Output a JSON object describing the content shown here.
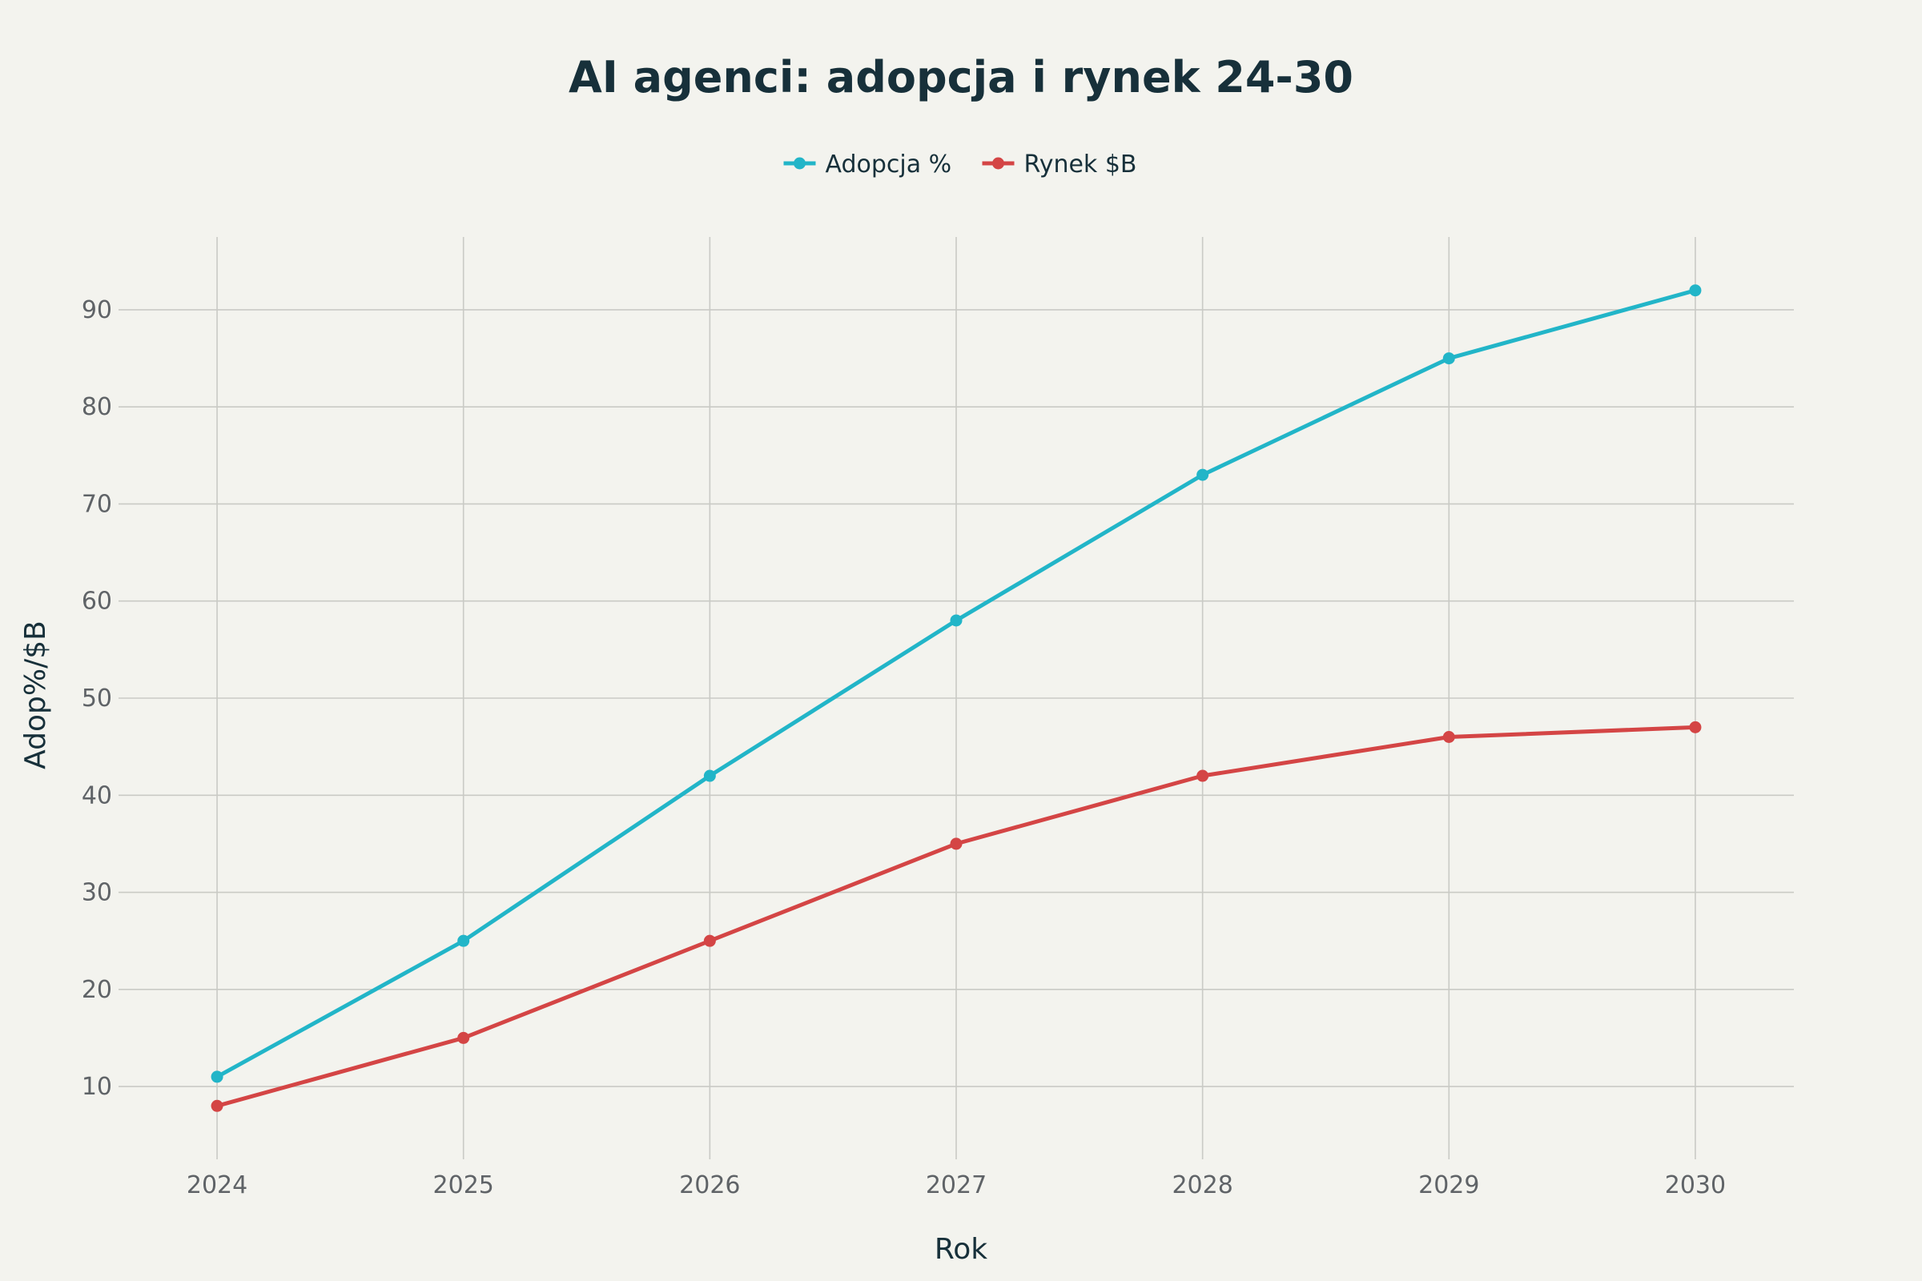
{
  "chart_data": {
    "type": "line",
    "title": "AI agenci: adopcja i rynek 24-30",
    "xlabel": "Rok",
    "ylabel": "Adop%/$B",
    "x": [
      2024,
      2025,
      2026,
      2027,
      2028,
      2029,
      2030
    ],
    "x_tick_labels": [
      "2024",
      "2025",
      "2026",
      "2027",
      "2028",
      "2029",
      "2030"
    ],
    "y_ticks": [
      10,
      20,
      30,
      40,
      50,
      60,
      70,
      80,
      90
    ],
    "y_tick_labels": [
      "10",
      "20",
      "30",
      "40",
      "50",
      "60",
      "70",
      "80",
      "90"
    ],
    "ylim": [
      2.5,
      97.5
    ],
    "xlim": [
      2023.6,
      2030.4
    ],
    "grid": true,
    "legend_position": "top-center",
    "series": [
      {
        "name": "Adopcja %",
        "color": "#22b5c8",
        "values": [
          11,
          25,
          42,
          58,
          73,
          85,
          92
        ]
      },
      {
        "name": "Rynek $B",
        "color": "#d44545",
        "values": [
          8,
          15,
          25,
          35,
          42,
          46,
          47
        ]
      }
    ]
  }
}
